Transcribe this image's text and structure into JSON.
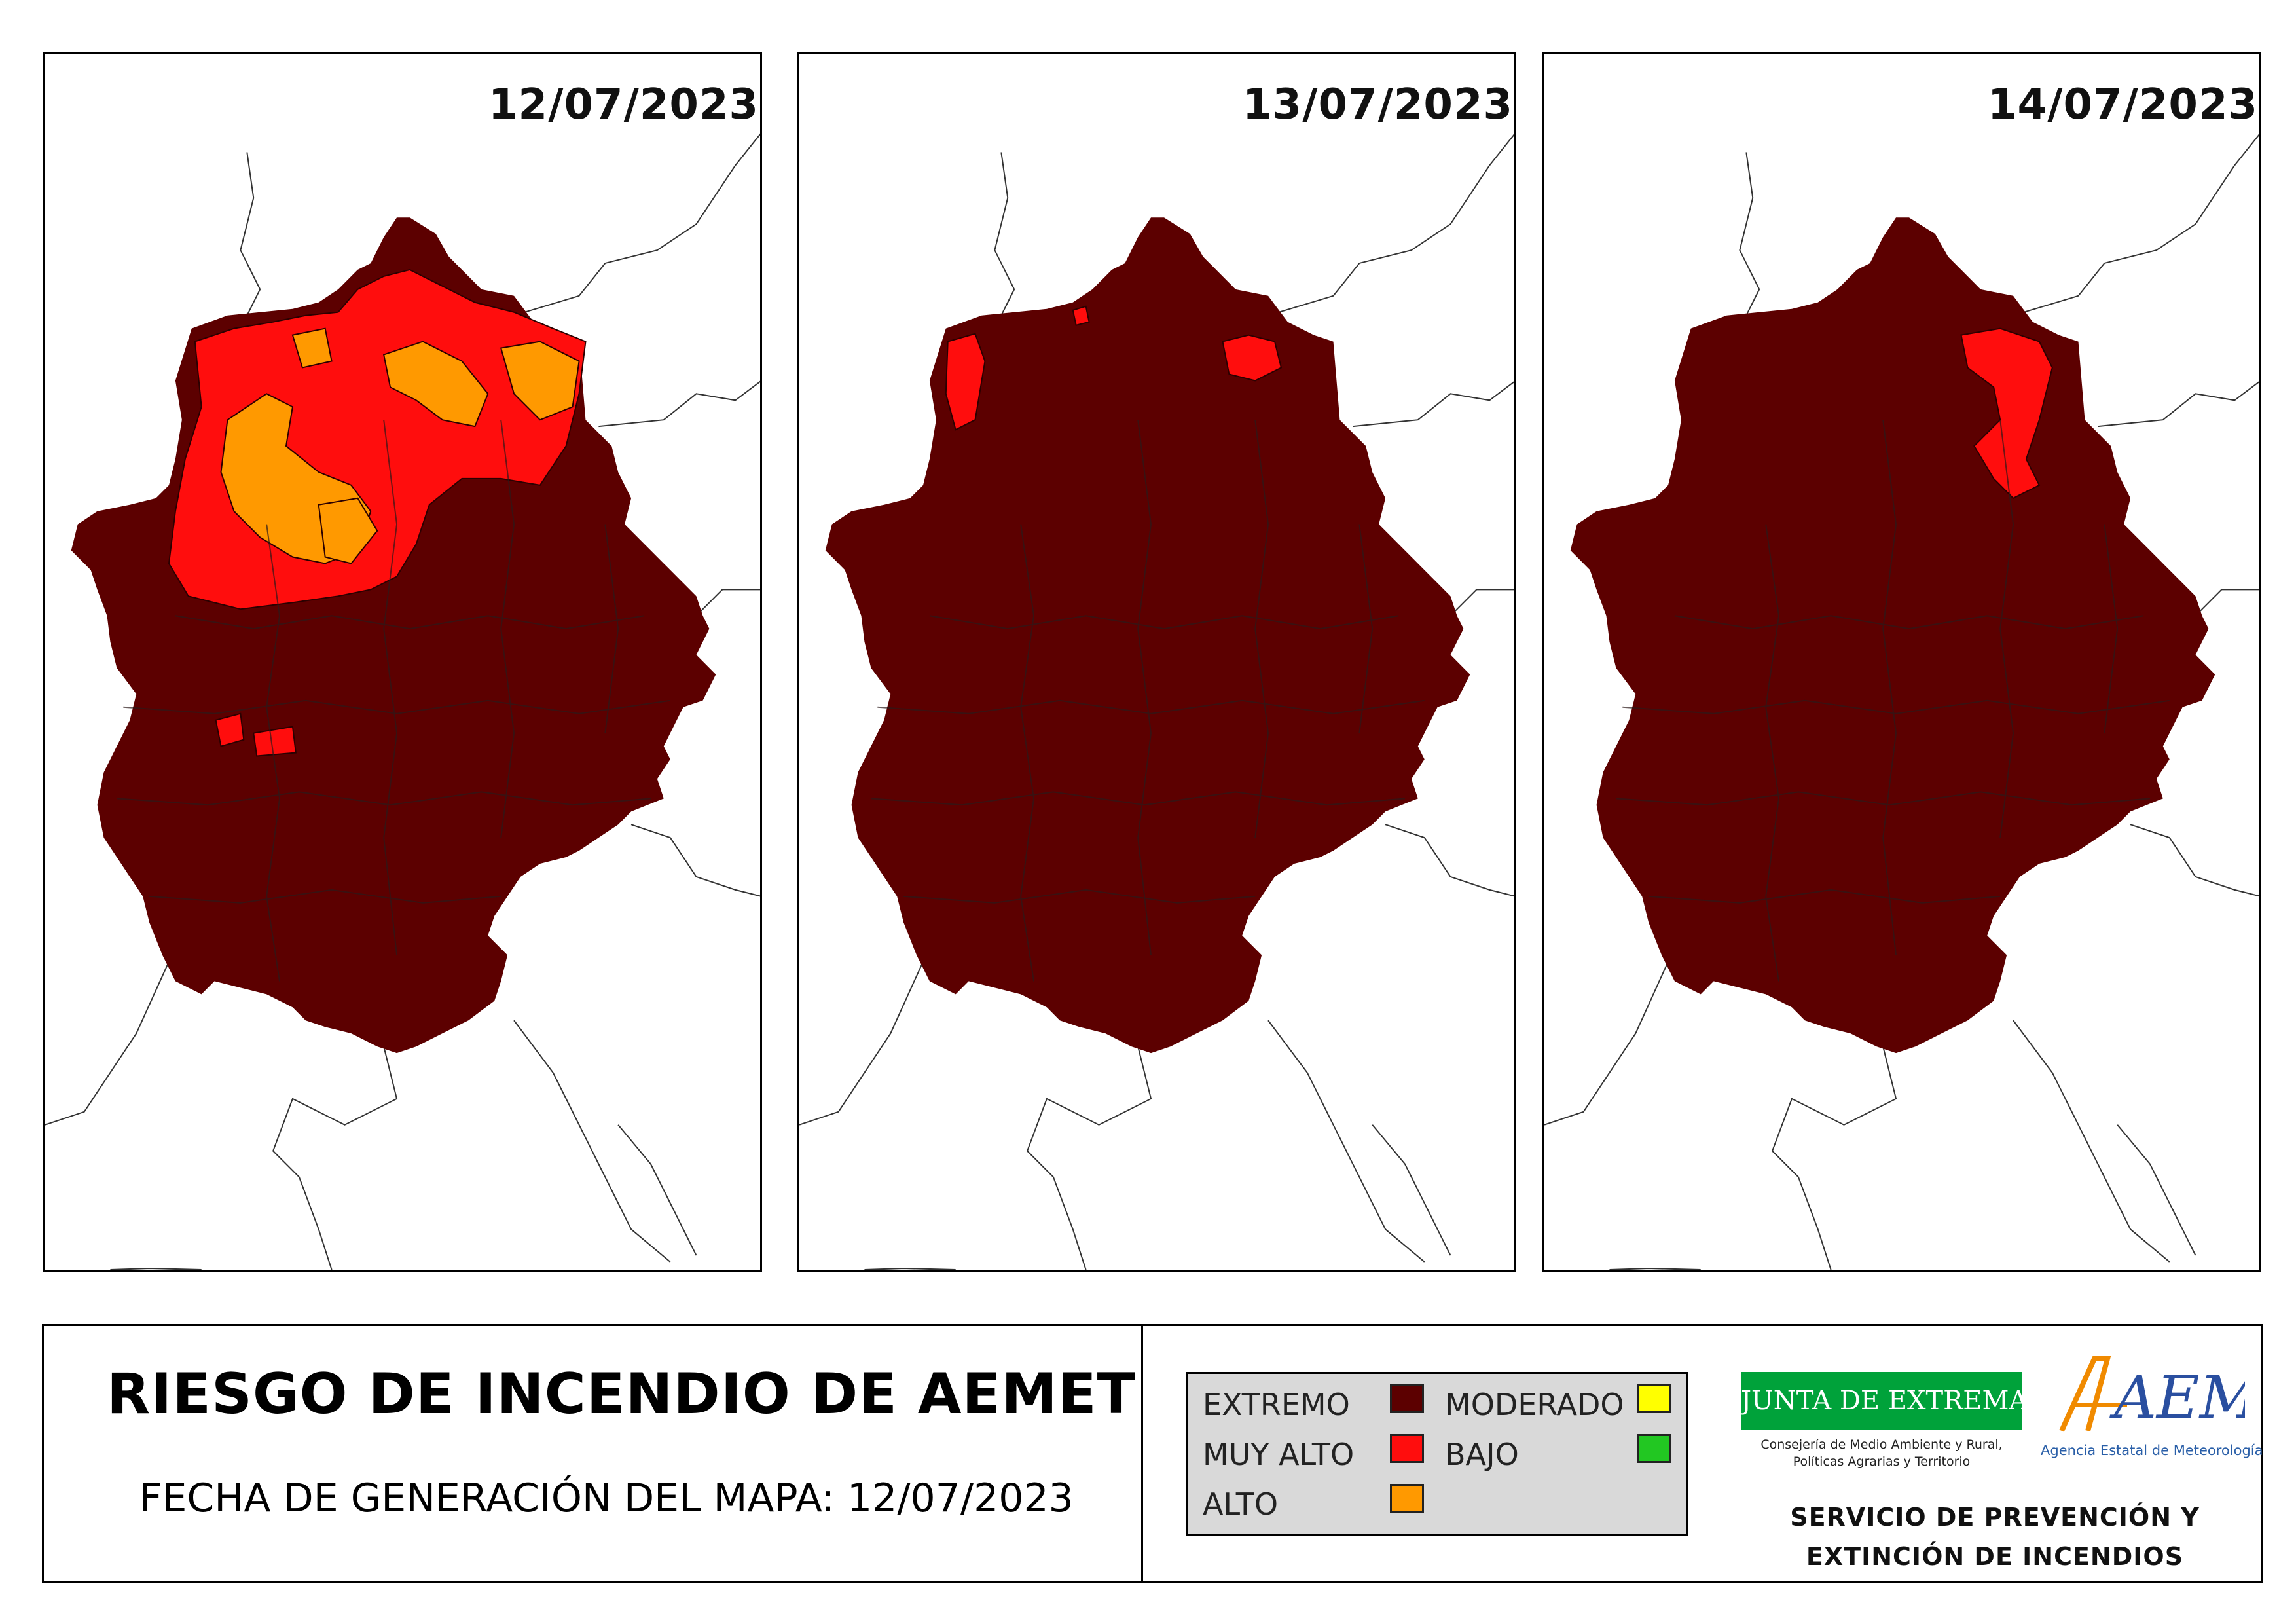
{
  "panels": [
    {
      "date": "12/07/2023"
    },
    {
      "date": "13/07/2023"
    },
    {
      "date": "14/07/2023"
    }
  ],
  "title": "RIESGO DE INCENDIO DE AEMET",
  "generation_date": "FECHA DE GENERACIÓN DEL MAPA: 12/07/2023",
  "legend": {
    "items": [
      {
        "label": "EXTREMO",
        "color": "#5c0000"
      },
      {
        "label": "MUY ALTO",
        "color": "#ff0d0d"
      },
      {
        "label": "ALTO",
        "color": "#ff9900"
      },
      {
        "label": "MODERADO",
        "color": "#ffff00"
      },
      {
        "label": "BAJO",
        "color": "#22c722"
      }
    ]
  },
  "logos": {
    "junta": "JUNTA DE EXTREMADURA",
    "junta_sub_1": "Consejería de Medio Ambiente y Rural,",
    "junta_sub_2": "Políticas Agrarias y Territorio",
    "aemet": "AEMet",
    "aemet_sub": "Agencia Estatal de Meteorología"
  },
  "service_line_1": "SERVICIO DE PREVENCIÓN Y",
  "service_line_2": "EXTINCIÓN DE INCENDIOS"
}
